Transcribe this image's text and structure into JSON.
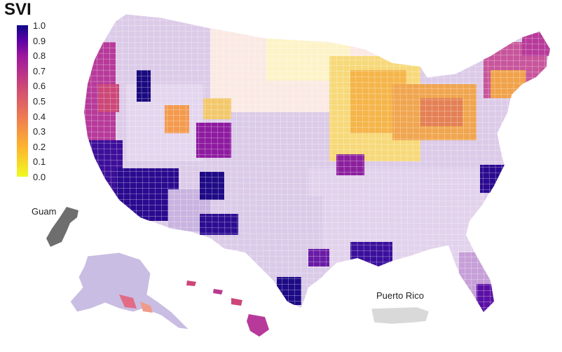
{
  "legend": {
    "title": "SVI",
    "ticks": [
      "1.0",
      "0.9",
      "0.8",
      "0.7",
      "0.6",
      "0.5",
      "0.4",
      "0.3",
      "0.2",
      "0.1",
      "0.0"
    ],
    "colormap": [
      "#f0f921",
      "#fdb32f",
      "#ed7953",
      "#cc4778",
      "#9c179e",
      "#5c01a6",
      "#0d0887"
    ]
  },
  "labels": {
    "guam": "Guam",
    "puerto_rico": "Puerto Rico"
  },
  "colors": {
    "territory_fill": "#6e6e6e",
    "puerto_rico_fill": "#d9d9d9",
    "base_fill": "#d7c4e6"
  }
}
